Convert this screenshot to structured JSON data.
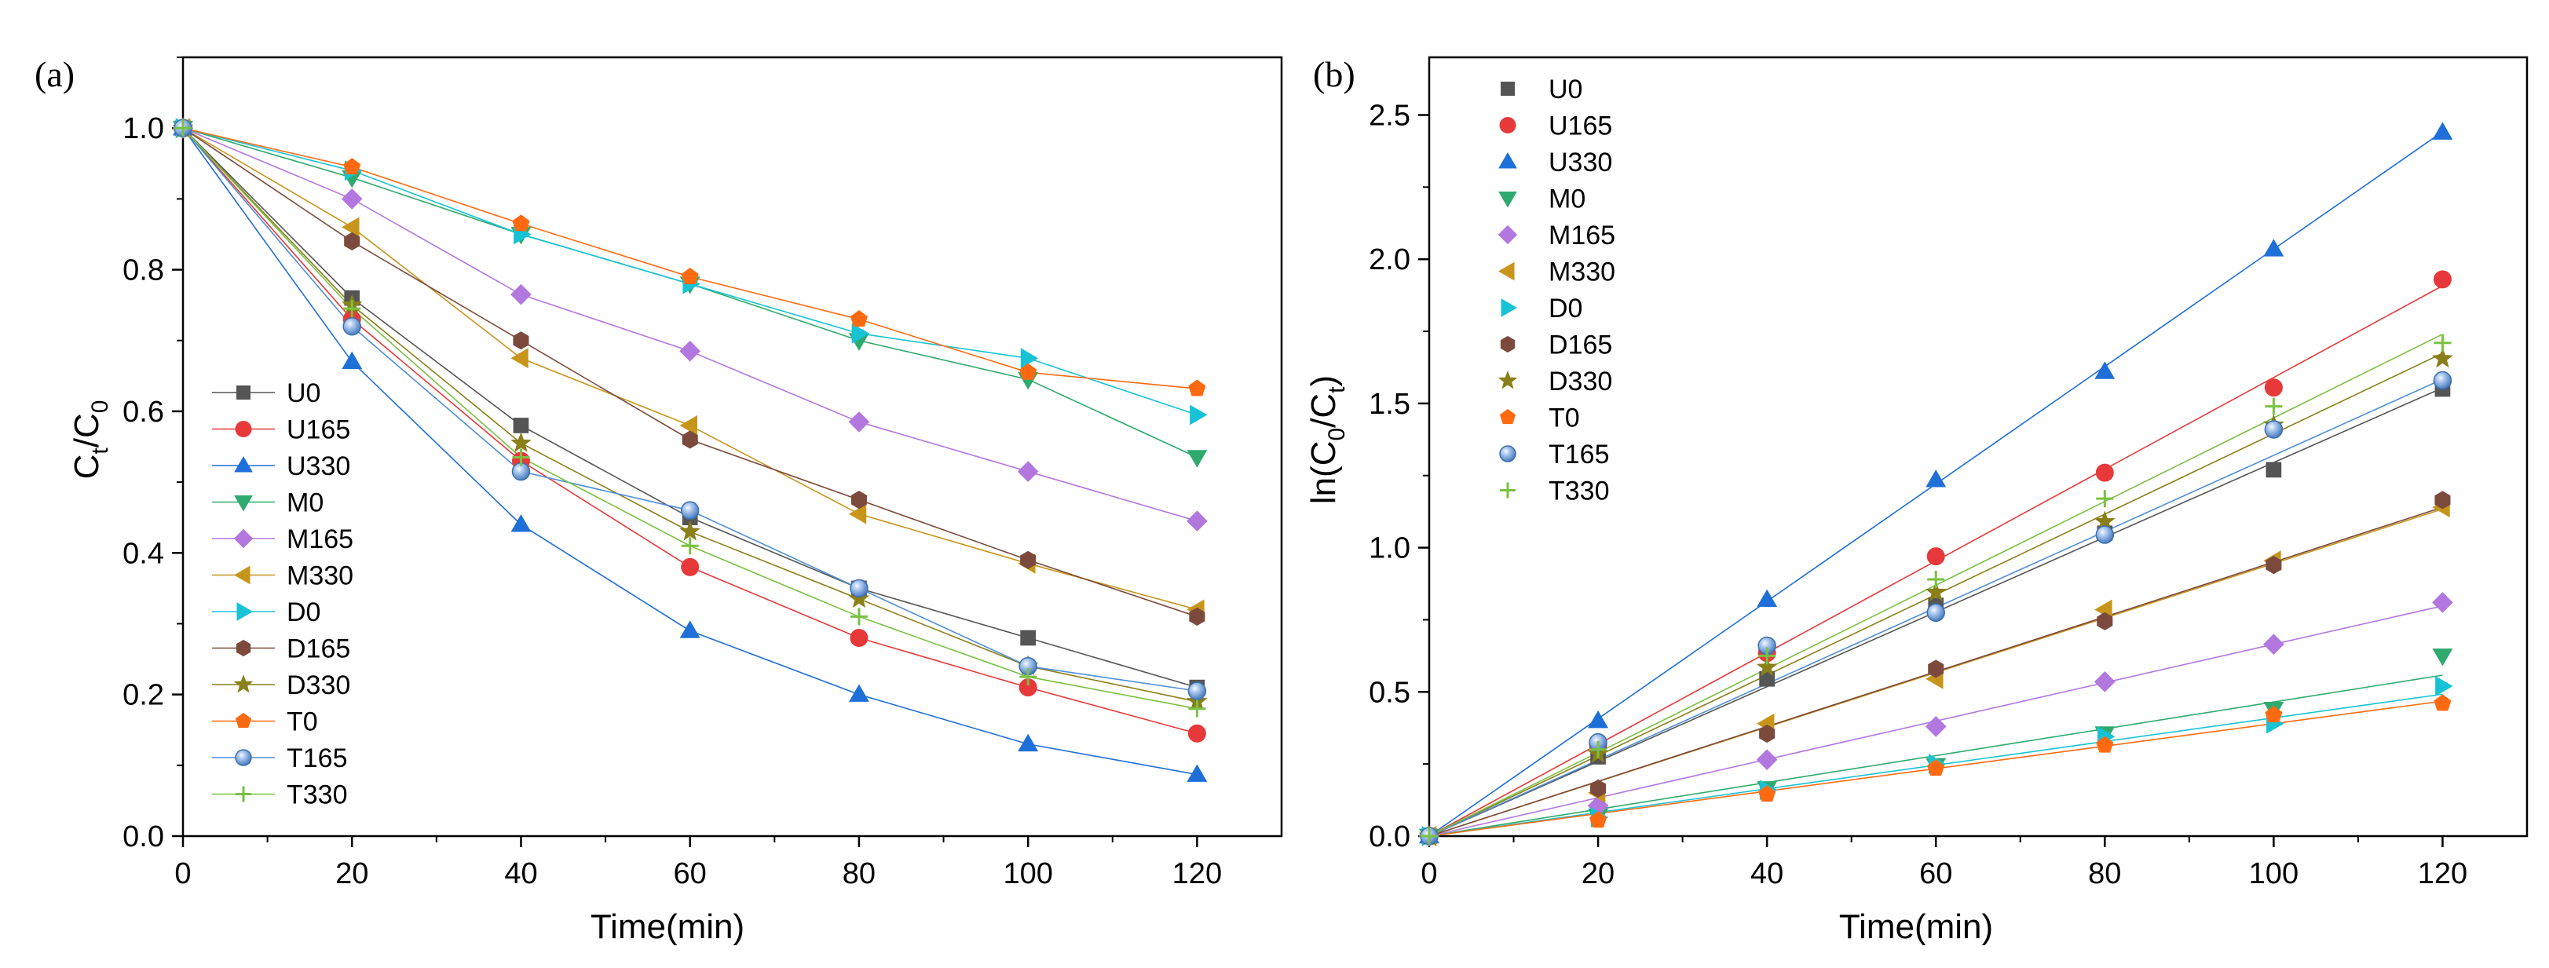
{
  "chart_data": [
    {
      "panel_label": "(a)",
      "type": "line",
      "title": "",
      "xlabel": "Time(min)",
      "ylabel": {
        "main": "C",
        "sub1": "t",
        "sep": "/C",
        "sub2": "0"
      },
      "xlim": [
        0,
        130
      ],
      "ylim": [
        0,
        1.1
      ],
      "xticks": [
        0,
        20,
        40,
        60,
        80,
        100,
        120
      ],
      "yticks": [
        0.0,
        0.2,
        0.4,
        0.6,
        0.8,
        1.0
      ],
      "x": [
        0,
        20,
        40,
        60,
        80,
        100,
        120
      ],
      "legend": "left",
      "series": [
        {
          "name": "U0",
          "color": "#555555",
          "marker": "square",
          "values": [
            1.0,
            0.76,
            0.58,
            0.45,
            0.35,
            0.28,
            0.21
          ]
        },
        {
          "name": "U165",
          "color": "#e8393a",
          "marker": "circle",
          "values": [
            1.0,
            0.73,
            0.53,
            0.38,
            0.28,
            0.21,
            0.145
          ]
        },
        {
          "name": "U330",
          "color": "#1f6fd8",
          "marker": "triangle-up",
          "values": [
            1.0,
            0.67,
            0.44,
            0.29,
            0.2,
            0.13,
            0.087
          ]
        },
        {
          "name": "M0",
          "color": "#2eaa6e",
          "marker": "triangle-down",
          "values": [
            1.0,
            0.93,
            0.85,
            0.78,
            0.7,
            0.645,
            0.535
          ]
        },
        {
          "name": "M165",
          "color": "#b377e0",
          "marker": "diamond",
          "values": [
            1.0,
            0.9,
            0.765,
            0.685,
            0.585,
            0.515,
            0.445
          ]
        },
        {
          "name": "M330",
          "color": "#c8951b",
          "marker": "triangle-left",
          "values": [
            1.0,
            0.86,
            0.675,
            0.58,
            0.455,
            0.385,
            0.32
          ]
        },
        {
          "name": "D0",
          "color": "#16c3d6",
          "marker": "triangle-right",
          "values": [
            1.0,
            0.94,
            0.85,
            0.78,
            0.71,
            0.675,
            0.595
          ]
        },
        {
          "name": "D165",
          "color": "#7b4a3c",
          "marker": "hexagon",
          "values": [
            1.0,
            0.84,
            0.7,
            0.56,
            0.475,
            0.39,
            0.31
          ]
        },
        {
          "name": "D330",
          "color": "#8a7f18",
          "marker": "star",
          "values": [
            1.0,
            0.75,
            0.555,
            0.43,
            0.335,
            0.24,
            0.19
          ]
        },
        {
          "name": "T0",
          "color": "#ff6a10",
          "marker": "pentagon",
          "values": [
            1.0,
            0.945,
            0.865,
            0.79,
            0.73,
            0.655,
            0.632
          ]
        },
        {
          "name": "T165",
          "color": "#4f8ed6",
          "marker": "sphere",
          "values": [
            1.0,
            0.72,
            0.515,
            0.46,
            0.35,
            0.24,
            0.205
          ]
        },
        {
          "name": "T330",
          "color": "#7ac142",
          "marker": "plus",
          "values": [
            1.0,
            0.745,
            0.535,
            0.41,
            0.31,
            0.225,
            0.18
          ]
        }
      ]
    },
    {
      "panel_label": "(b)",
      "type": "scatter",
      "title": "",
      "xlabel": "Time(min)",
      "ylabel": {
        "pre": "ln(C",
        "sub1": "0",
        "sep": "/C",
        "sub2": "t",
        "post": ")"
      },
      "xlim": [
        0,
        130
      ],
      "ylim": [
        0,
        2.7
      ],
      "xticks": [
        0,
        20,
        40,
        60,
        80,
        100,
        120
      ],
      "yticks": [
        0.0,
        0.5,
        1.0,
        1.5,
        2.0,
        2.5
      ],
      "x": [
        0,
        20,
        40,
        60,
        80,
        100,
        120
      ],
      "legend": "top-left",
      "fit": "linear through origin",
      "series": [
        {
          "name": "U0",
          "color": "#555555",
          "marker": "square",
          "slope": 0.01295,
          "values": [
            0.0,
            0.275,
            0.545,
            0.8,
            1.05,
            1.27,
            1.55
          ]
        },
        {
          "name": "U165",
          "color": "#e8393a",
          "marker": "circle",
          "slope": 0.0159,
          "values": [
            0.0,
            0.315,
            0.635,
            0.97,
            1.26,
            1.555,
            1.93
          ]
        },
        {
          "name": "U330",
          "color": "#1f6fd8",
          "marker": "triangle-up",
          "slope": 0.02035,
          "values": [
            0.0,
            0.4,
            0.82,
            1.235,
            1.61,
            2.035,
            2.44
          ]
        },
        {
          "name": "M0",
          "color": "#2eaa6e",
          "marker": "triangle-down",
          "slope": 0.00465,
          "values": [
            0.0,
            0.07,
            0.165,
            0.245,
            0.355,
            0.44,
            0.625
          ]
        },
        {
          "name": "M165",
          "color": "#b377e0",
          "marker": "diamond",
          "slope": 0.00665,
          "values": [
            0.0,
            0.105,
            0.265,
            0.38,
            0.535,
            0.665,
            0.81
          ]
        },
        {
          "name": "M330",
          "color": "#c8951b",
          "marker": "triangle-left",
          "slope": 0.00945,
          "values": [
            0.0,
            0.15,
            0.39,
            0.545,
            0.785,
            0.955,
            1.14
          ]
        },
        {
          "name": "D0",
          "color": "#16c3d6",
          "marker": "triangle-right",
          "slope": 0.0041,
          "values": [
            0.0,
            0.065,
            0.16,
            0.25,
            0.345,
            0.39,
            0.52
          ]
        },
        {
          "name": "D165",
          "color": "#7b4a3c",
          "marker": "hexagon",
          "slope": 0.0095,
          "values": [
            0.0,
            0.165,
            0.355,
            0.58,
            0.745,
            0.94,
            1.165
          ]
        },
        {
          "name": "D330",
          "color": "#8a7f18",
          "marker": "star",
          "slope": 0.01395,
          "values": [
            0.0,
            0.285,
            0.585,
            0.845,
            1.09,
            1.425,
            1.655
          ]
        },
        {
          "name": "T0",
          "color": "#ff6a10",
          "marker": "pentagon",
          "slope": 0.0039,
          "values": [
            0.0,
            0.055,
            0.145,
            0.235,
            0.315,
            0.42,
            0.46
          ]
        },
        {
          "name": "T165",
          "color": "#4f8ed6",
          "marker": "sphere",
          "slope": 0.0132,
          "values": [
            0.0,
            0.325,
            0.66,
            0.775,
            1.045,
            1.41,
            1.58
          ]
        },
        {
          "name": "T330",
          "color": "#7ac142",
          "marker": "plus",
          "slope": 0.0145,
          "values": [
            0.0,
            0.3,
            0.625,
            0.89,
            1.17,
            1.49,
            1.71
          ]
        }
      ]
    }
  ]
}
